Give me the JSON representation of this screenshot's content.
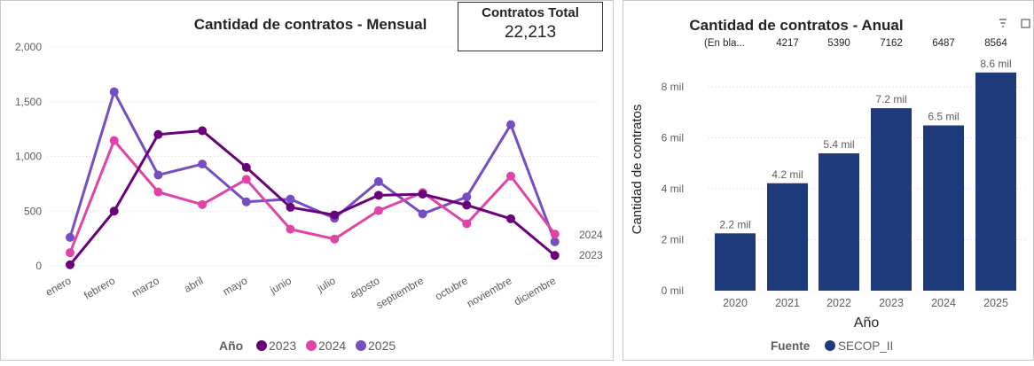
{
  "colors": {
    "y2023": "#6B007B",
    "y2024": "#E044A7",
    "y2025": "#744EC2",
    "bar": "#1F3A7A",
    "grid": "#d9d9d9",
    "text": "#605E5C"
  },
  "card": {
    "label": "Contratos Total",
    "value": "22,213"
  },
  "icons": [
    "filter-icon",
    "focus-mode-icon"
  ],
  "chart_data": [
    {
      "type": "line",
      "title": "Cantidad de contratos - Mensual",
      "xlabel": "",
      "ylabel": "",
      "categories": [
        "enero",
        "febrero",
        "marzo",
        "abril",
        "mayo",
        "junio",
        "julio",
        "agosto",
        "septiembre",
        "octubre",
        "noviembre",
        "diciembre"
      ],
      "y_ticks": [
        "0",
        "500",
        "1,000",
        "1,500",
        "2,000"
      ],
      "ylim": [
        0,
        2000
      ],
      "grid": true,
      "legend": {
        "title": "Año",
        "position": "bottom",
        "items": [
          "2023",
          "2024",
          "2025"
        ]
      },
      "end_labels": [
        "2024",
        "2023"
      ],
      "series": [
        {
          "name": "2023",
          "values": [
            10,
            500,
            1200,
            1235,
            900,
            535,
            465,
            645,
            655,
            555,
            430,
            95
          ]
        },
        {
          "name": "2024",
          "values": [
            120,
            1145,
            675,
            560,
            790,
            335,
            245,
            505,
            670,
            385,
            820,
            290
          ]
        },
        {
          "name": "2025",
          "values": [
            260,
            1590,
            830,
            930,
            585,
            610,
            435,
            770,
            475,
            630,
            1290,
            220
          ]
        }
      ]
    },
    {
      "type": "bar",
      "title": "Cantidad de contratos - Anual",
      "xlabel": "Año",
      "ylabel": "Cantidad de contratos",
      "categories": [
        "2020",
        "2021",
        "2022",
        "2023",
        "2024",
        "2025"
      ],
      "values": [
        2250,
        4217,
        5390,
        7162,
        6487,
        8564
      ],
      "data_labels": [
        "2.2 mil",
        "4.2 mil",
        "5.4 mil",
        "7.2 mil",
        "6.5 mil",
        "8.6 mil"
      ],
      "table_row": [
        "(En bla...",
        "4217",
        "5390",
        "7162",
        "6487",
        "8564"
      ],
      "y_ticks": [
        "0 mil",
        "2 mil",
        "4 mil",
        "6 mil",
        "8 mil"
      ],
      "ylim": [
        0,
        9000
      ],
      "grid": true,
      "legend": {
        "title": "Fuente",
        "position": "bottom",
        "items": [
          "SECOP_II"
        ]
      }
    }
  ]
}
